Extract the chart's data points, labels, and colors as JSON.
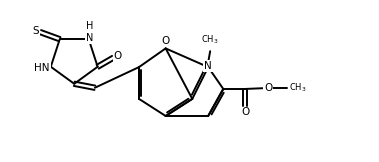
{
  "bg_color": "#ffffff",
  "line_color": "#000000",
  "line_width": 1.4,
  "font_size": 7.5,
  "figsize": [
    3.79,
    1.62
  ],
  "dpi": 100,
  "xlim": [
    0,
    9.5
  ],
  "ylim": [
    0,
    4.0
  ]
}
